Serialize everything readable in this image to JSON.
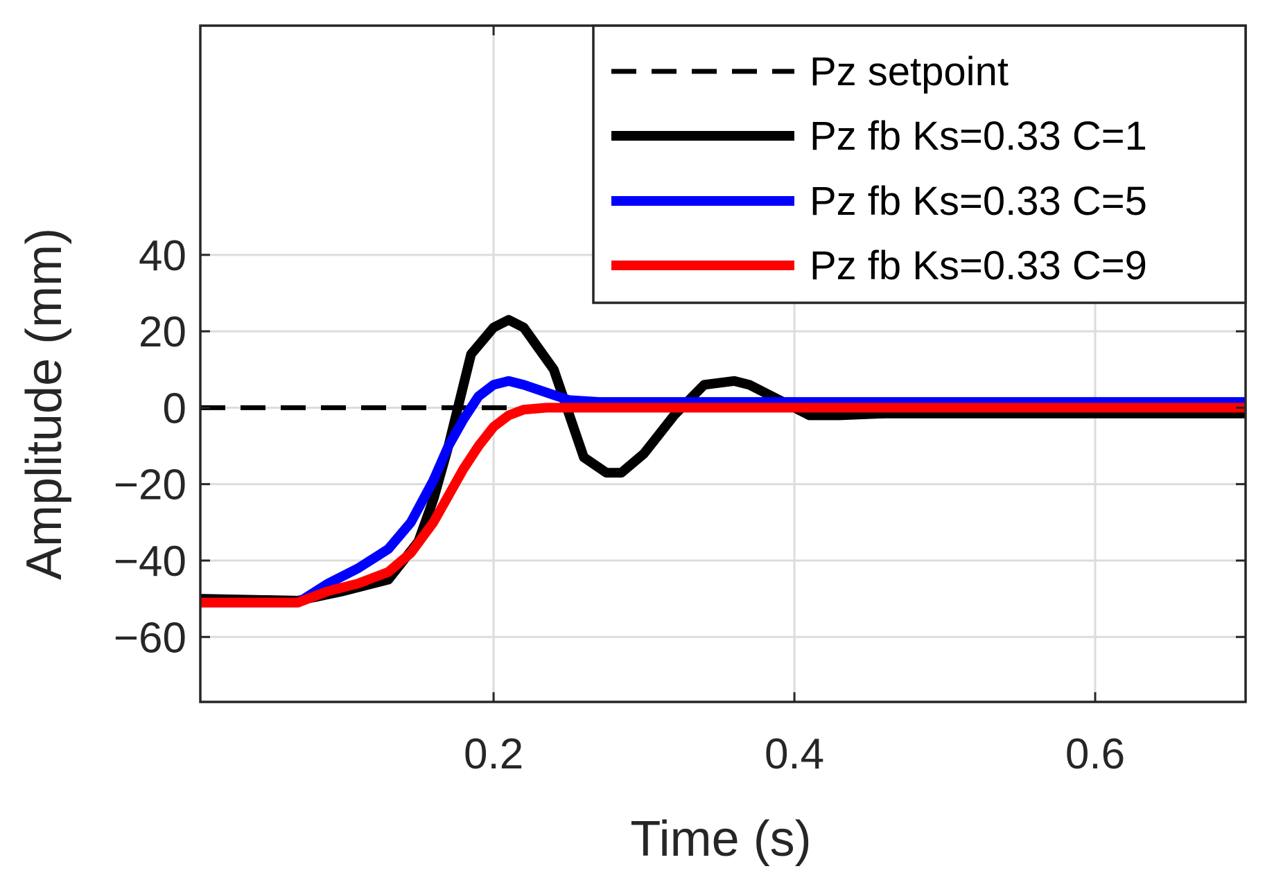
{
  "chart_data": {
    "type": "line",
    "title": "",
    "xlabel": "Time (s)",
    "ylabel": "Amplitude (mm)",
    "xlim": [
      0.005,
      0.7
    ],
    "ylim": [
      -77,
      100
    ],
    "xticks": [
      0.2,
      0.4,
      0.6
    ],
    "xtick_labels": [
      "0.2",
      "0.4",
      "0.6"
    ],
    "yticks": [
      -60,
      -40,
      -20,
      0,
      20,
      40
    ],
    "ytick_labels": [
      "−60",
      "−40",
      "−20",
      "0",
      "20",
      "40"
    ],
    "grid": true,
    "legend_position": "top-right",
    "series": [
      {
        "name": "Pz setpoint",
        "color": "#000000",
        "style": "dashed",
        "x": [
          0.005,
          0.7
        ],
        "y": [
          0,
          0
        ]
      },
      {
        "name": "Pz fb Ks=0.33 C=1",
        "color": "#000000",
        "style": "solid",
        "x": [
          0.005,
          0.07,
          0.1,
          0.13,
          0.15,
          0.16,
          0.17,
          0.185,
          0.2,
          0.21,
          0.22,
          0.24,
          0.26,
          0.275,
          0.285,
          0.3,
          0.32,
          0.34,
          0.36,
          0.37,
          0.39,
          0.41,
          0.43,
          0.46,
          0.5,
          0.7
        ],
        "y": [
          -50,
          -50.5,
          -48,
          -45,
          -35,
          -24,
          -10,
          14,
          21,
          23,
          21,
          10,
          -13,
          -17,
          -17,
          -12,
          -2,
          6,
          7,
          6,
          2,
          -2,
          -2,
          -1.5,
          -1.5,
          -1.5
        ]
      },
      {
        "name": "Pz fb Ks=0.33 C=5",
        "color": "#0000ff",
        "style": "solid",
        "x": [
          0.005,
          0.07,
          0.09,
          0.11,
          0.13,
          0.145,
          0.16,
          0.17,
          0.18,
          0.19,
          0.2,
          0.21,
          0.22,
          0.235,
          0.25,
          0.27,
          0.3,
          0.4,
          0.7
        ],
        "y": [
          -51,
          -51,
          -46,
          -42,
          -37,
          -30,
          -19,
          -10,
          -3,
          3,
          6,
          7,
          6,
          4,
          2,
          1.5,
          1.5,
          1.5,
          1.5
        ]
      },
      {
        "name": "Pz fb Ks=0.33 C=9",
        "color": "#ff0000",
        "style": "solid",
        "x": [
          0.005,
          0.07,
          0.09,
          0.11,
          0.13,
          0.145,
          0.16,
          0.17,
          0.18,
          0.19,
          0.2,
          0.21,
          0.22,
          0.235,
          0.25,
          0.27,
          0.3,
          0.4,
          0.7
        ],
        "y": [
          -51,
          -51,
          -48,
          -46,
          -43,
          -38,
          -30,
          -23,
          -16,
          -10,
          -5,
          -2,
          -0.5,
          0,
          0,
          0,
          0,
          0,
          0
        ]
      }
    ]
  }
}
